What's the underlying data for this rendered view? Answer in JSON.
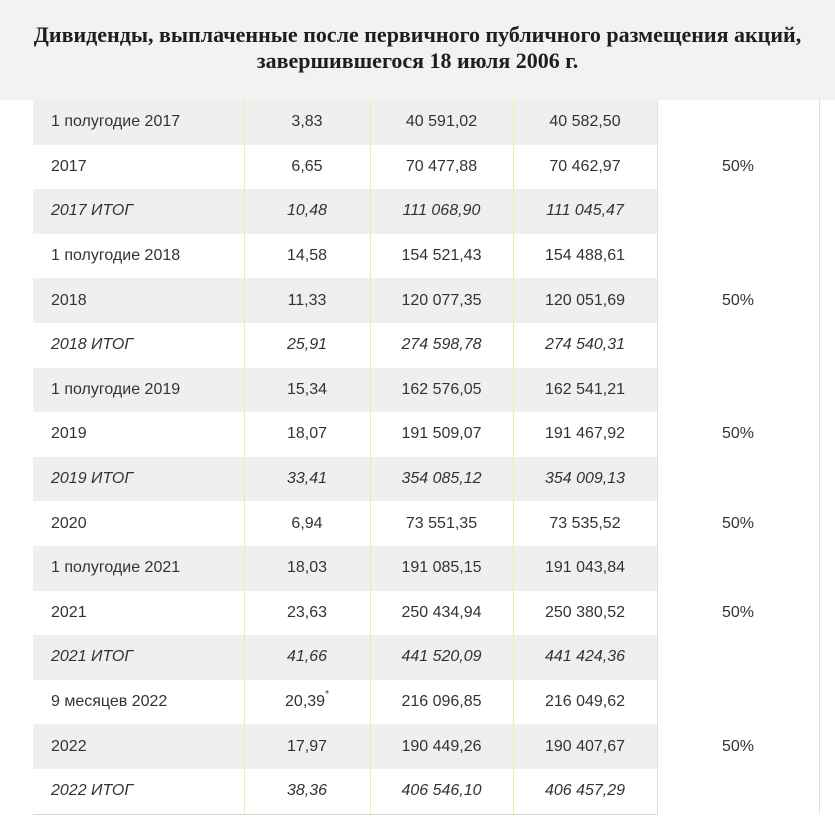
{
  "title": "Дивиденды, выплаченные после первичного публичного размещения акций, завершившегося 18 июля 2006 г.",
  "rows": [
    {
      "period": "1 полугодие 2017",
      "per_share": "3,83",
      "col3": "40 591,02",
      "col4": "40 582,50",
      "total": false,
      "grey": true
    },
    {
      "period": "2017",
      "per_share": "6,65",
      "col3": "70 477,88",
      "col4": "70 462,97",
      "total": false,
      "grey": false
    },
    {
      "period": "2017 ИТОГ",
      "per_share": "10,48",
      "col3": "111 068,90",
      "col4": "111 045,47",
      "total": true,
      "grey": true
    },
    {
      "period": "1 полугодие 2018",
      "per_share": "14,58",
      "col3": "154 521,43",
      "col4": "154 488,61",
      "total": false,
      "grey": false
    },
    {
      "period": "2018",
      "per_share": "11,33",
      "col3": "120 077,35",
      "col4": "120 051,69",
      "total": false,
      "grey": true
    },
    {
      "period": "2018 ИТОГ",
      "per_share": "25,91",
      "col3": "274 598,78",
      "col4": "274 540,31",
      "total": true,
      "grey": false
    },
    {
      "period": "1 полугодие 2019",
      "per_share": "15,34",
      "col3": "162 576,05",
      "col4": "162 541,21",
      "total": false,
      "grey": true
    },
    {
      "period": "2019",
      "per_share": "18,07",
      "col3": "191 509,07",
      "col4": "191 467,92",
      "total": false,
      "grey": false
    },
    {
      "period": "2019 ИТОГ",
      "per_share": "33,41",
      "col3": "354 085,12",
      "col4": "354 009,13",
      "total": true,
      "grey": true
    },
    {
      "period": "2020",
      "per_share": "6,94",
      "col3": "73 551,35",
      "col4": "73 535,52",
      "total": false,
      "grey": false
    },
    {
      "period": "1 полугодие 2021",
      "per_share": "18,03",
      "col3": "191 085,15",
      "col4": "191 043,84",
      "total": false,
      "grey": true
    },
    {
      "period": "2021",
      "per_share": "23,63",
      "col3": "250 434,94",
      "col4": "250 380,52",
      "total": false,
      "grey": false
    },
    {
      "period": "2021 ИТОГ",
      "per_share": "41,66",
      "col3": "441 520,09",
      "col4": "441 424,36",
      "total": true,
      "grey": true
    },
    {
      "period": "9 месяцев 2022",
      "per_share": "20,39",
      "per_share_note": "*",
      "col3": "216 096,85",
      "col4": "216 049,62",
      "total": false,
      "grey": false
    },
    {
      "period": "2022",
      "per_share": "17,97",
      "col3": "190 449,26",
      "col4": "190 407,67",
      "total": false,
      "grey": true
    },
    {
      "period": "2022 ИТОГ",
      "per_share": "38,36",
      "col3": "406 546,10",
      "col4": "406 457,29",
      "total": true,
      "grey": false
    }
  ],
  "payout_groups": [
    {
      "value": "50%",
      "span": 3
    },
    {
      "value": "50%",
      "span": 3
    },
    {
      "value": "50%",
      "span": 3
    },
    {
      "value": "50%",
      "span": 1
    },
    {
      "value": "50%",
      "span": 3
    },
    {
      "value": "50%",
      "span": 3
    }
  ]
}
